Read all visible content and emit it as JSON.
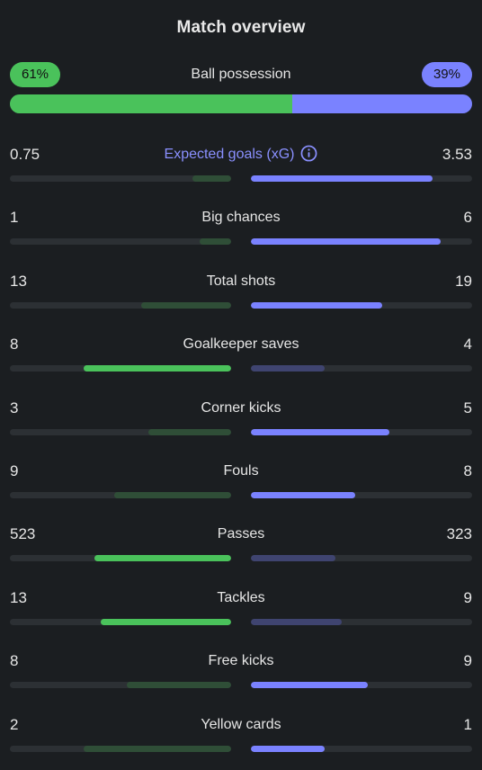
{
  "title": "Match overview",
  "colors": {
    "home_strong": "#4ac25b",
    "home_weak": "#2f4e37",
    "away_strong": "#7a82ff",
    "away_weak": "#3f4470",
    "track": "#2c3034",
    "background": "#1b1e21",
    "accent_label": "#8a90ff"
  },
  "possession": {
    "label": "Ball possession",
    "home_text": "61%",
    "away_text": "39%",
    "home_percent": 61,
    "away_percent": 39
  },
  "stats": [
    {
      "label": "Expected goals (xG)",
      "home": "0.75",
      "away": "3.53",
      "home_value": 0.75,
      "away_value": 3.53,
      "max": 4.3,
      "accent": true,
      "info_icon": "info-icon",
      "home_strong": false,
      "away_strong": true
    },
    {
      "label": "Big chances",
      "home": "1",
      "away": "6",
      "home_value": 1,
      "away_value": 6,
      "max": 7,
      "home_strong": false,
      "away_strong": true
    },
    {
      "label": "Total shots",
      "home": "13",
      "away": "19",
      "home_value": 13,
      "away_value": 19,
      "max": 32,
      "home_strong": false,
      "away_strong": true
    },
    {
      "label": "Goalkeeper saves",
      "home": "8",
      "away": "4",
      "home_value": 8,
      "away_value": 4,
      "max": 12,
      "home_strong": true,
      "away_strong": false
    },
    {
      "label": "Corner kicks",
      "home": "3",
      "away": "5",
      "home_value": 3,
      "away_value": 5,
      "max": 8,
      "home_strong": false,
      "away_strong": true
    },
    {
      "label": "Fouls",
      "home": "9",
      "away": "8",
      "home_value": 9,
      "away_value": 8,
      "max": 17,
      "home_strong": false,
      "away_strong": true
    },
    {
      "label": "Passes",
      "home": "523",
      "away": "323",
      "home_value": 523,
      "away_value": 323,
      "max": 846,
      "home_strong": true,
      "away_strong": false
    },
    {
      "label": "Tackles",
      "home": "13",
      "away": "9",
      "home_value": 13,
      "away_value": 9,
      "max": 22,
      "home_strong": true,
      "away_strong": false
    },
    {
      "label": "Free kicks",
      "home": "8",
      "away": "9",
      "home_value": 8,
      "away_value": 9,
      "max": 17,
      "home_strong": false,
      "away_strong": true
    },
    {
      "label": "Yellow cards",
      "home": "2",
      "away": "1",
      "home_value": 2,
      "away_value": 1,
      "max": 3,
      "home_strong": false,
      "away_strong": true
    }
  ]
}
